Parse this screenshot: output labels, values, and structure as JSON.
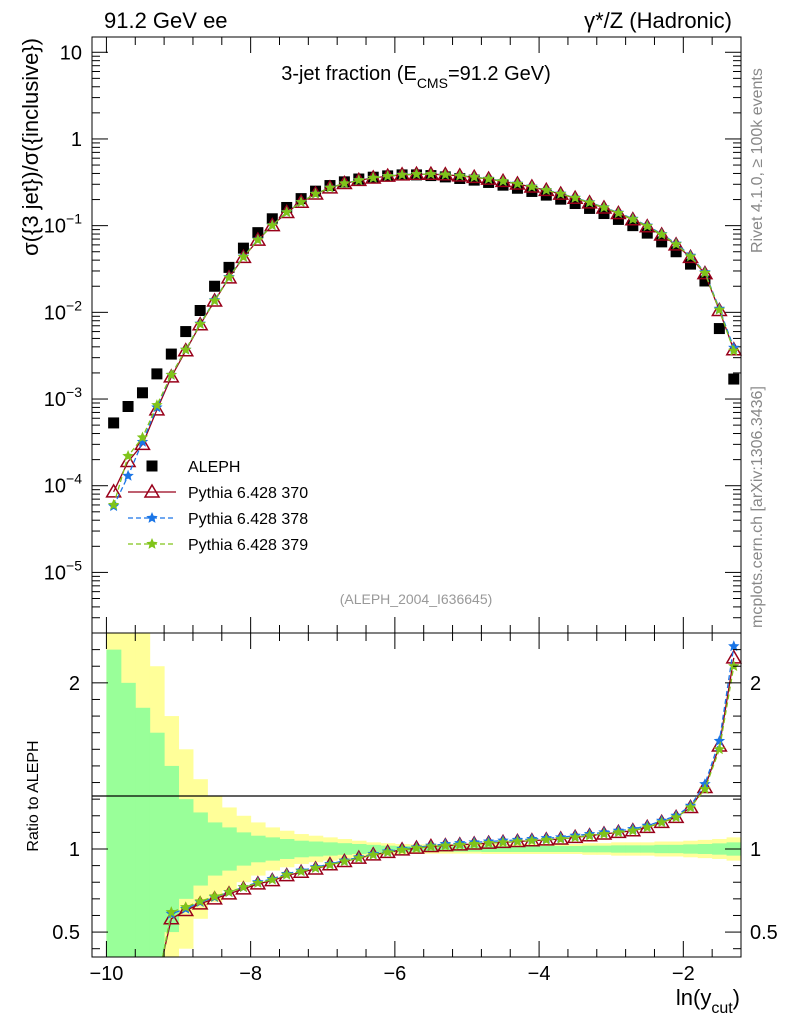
{
  "header": {
    "left": "91.2 GeV ee",
    "right": "γ*/Z (Hadronic)"
  },
  "side_text": {
    "rivet": "Rivet 4.1.0, ≥ 100k events",
    "mcplots": "mcplots.cern.ch [arXiv:1306.3436]"
  },
  "colors": {
    "aleph": "#000000",
    "p370": "#99001a",
    "p378": "#1a75e6",
    "p379": "#80c41a",
    "band_green": "#99ff99",
    "band_yellow": "#ffff99"
  },
  "chart_data": [
    {
      "type": "scatter",
      "title": "3-jet fraction (E_CMS=91.2 GeV)",
      "title_parts": {
        "pre": "3-jet fraction (E",
        "sub": "CMS",
        "post": "=91.2 GeV)"
      },
      "ylabel": "σ({3 jet})/σ({inclusive})",
      "yscale": "log",
      "ylim": [
        2e-06,
        15
      ],
      "xlim": [
        -10.2,
        -1.2
      ],
      "watermark": "(ALEPH_2004_I636645)",
      "y_ticks": [
        {
          "v": 10,
          "mant": "10",
          "exp": ""
        },
        {
          "v": 1,
          "mant": "1",
          "exp": ""
        },
        {
          "v": 0.1,
          "mant": "10",
          "exp": "−1"
        },
        {
          "v": 0.01,
          "mant": "10",
          "exp": "−2"
        },
        {
          "v": 0.001,
          "mant": "10",
          "exp": "−3"
        },
        {
          "v": 0.0001,
          "mant": "10",
          "exp": "−4"
        },
        {
          "v": 1e-05,
          "mant": "10",
          "exp": "−5"
        }
      ],
      "legend": [
        {
          "key": "aleph",
          "label": "ALEPH",
          "marker": "square"
        },
        {
          "key": "p370",
          "label": "Pythia 6.428 370",
          "marker": "triangle"
        },
        {
          "key": "p378",
          "label": "Pythia 6.428 378",
          "marker": "star"
        },
        {
          "key": "p379",
          "label": "Pythia 6.428 379",
          "marker": "star"
        }
      ],
      "x": [
        -9.9,
        -9.7,
        -9.5,
        -9.3,
        -9.1,
        -8.9,
        -8.7,
        -8.5,
        -8.3,
        -8.1,
        -7.9,
        -7.7,
        -7.5,
        -7.3,
        -7.1,
        -6.9,
        -6.7,
        -6.5,
        -6.3,
        -6.1,
        -5.9,
        -5.7,
        -5.5,
        -5.3,
        -5.1,
        -4.9,
        -4.7,
        -4.5,
        -4.3,
        -4.1,
        -3.9,
        -3.7,
        -3.5,
        -3.3,
        -3.1,
        -2.9,
        -2.7,
        -2.5,
        -2.3,
        -2.1,
        -1.9,
        -1.7,
        -1.5,
        -1.3
      ],
      "series": [
        {
          "key": "aleph",
          "name": "ALEPH",
          "values": [
            0.00053,
            0.00082,
            0.00118,
            0.00195,
            0.0033,
            0.006,
            0.0105,
            0.02,
            0.033,
            0.055,
            0.083,
            0.12,
            0.162,
            0.205,
            0.25,
            0.29,
            0.32,
            0.345,
            0.362,
            0.375,
            0.385,
            0.385,
            0.378,
            0.365,
            0.35,
            0.335,
            0.315,
            0.293,
            0.27,
            0.248,
            0.225,
            0.202,
            0.18,
            0.158,
            0.138,
            0.118,
            0.1,
            0.082,
            0.065,
            0.05,
            0.036,
            0.023,
            0.0065,
            0.0017
          ]
        },
        {
          "key": "p370",
          "name": "Pythia 6.428 370",
          "values": [
            8.5e-05,
            0.00019,
            0.0003,
            0.00075,
            0.0018,
            0.0036,
            0.0072,
            0.0135,
            0.025,
            0.043,
            0.068,
            0.1,
            0.142,
            0.186,
            0.232,
            0.273,
            0.306,
            0.333,
            0.355,
            0.372,
            0.385,
            0.392,
            0.392,
            0.386,
            0.375,
            0.361,
            0.344,
            0.324,
            0.302,
            0.279,
            0.255,
            0.231,
            0.207,
            0.183,
            0.16,
            0.138,
            0.117,
            0.097,
            0.078,
            0.06,
            0.043,
            0.028,
            0.0105,
            0.0037
          ]
        },
        {
          "key": "p378",
          "name": "Pythia 6.428 378",
          "values": [
            5.8e-05,
            0.00013,
            0.00032,
            0.0008,
            0.0019,
            0.0037,
            0.0074,
            0.0138,
            0.0255,
            0.044,
            0.069,
            0.101,
            0.143,
            0.187,
            0.233,
            0.274,
            0.307,
            0.334,
            0.356,
            0.373,
            0.386,
            0.393,
            0.393,
            0.388,
            0.377,
            0.364,
            0.347,
            0.327,
            0.305,
            0.282,
            0.258,
            0.234,
            0.21,
            0.186,
            0.163,
            0.141,
            0.12,
            0.1,
            0.08,
            0.062,
            0.045,
            0.029,
            0.011,
            0.0039
          ]
        },
        {
          "key": "p379",
          "name": "Pythia 6.428 379",
          "values": [
            6e-05,
            0.00022,
            0.00036,
            0.00085,
            0.0019,
            0.0037,
            0.0073,
            0.0136,
            0.0252,
            0.0435,
            0.0685,
            0.1005,
            0.1425,
            0.1865,
            0.2325,
            0.2735,
            0.3065,
            0.3335,
            0.3555,
            0.3725,
            0.3855,
            0.3925,
            0.3925,
            0.387,
            0.376,
            0.3625,
            0.3455,
            0.3255,
            0.3035,
            0.2805,
            0.2565,
            0.2325,
            0.2085,
            0.1845,
            0.1615,
            0.1395,
            0.1185,
            0.0985,
            0.079,
            0.061,
            0.044,
            0.0285,
            0.0107,
            0.0036
          ]
        }
      ]
    },
    {
      "type": "line",
      "ylabel": "Ratio to ALEPH",
      "xlabel": "ln(y_cut)",
      "xlabel_parts": {
        "pre": "ln(y",
        "sub": "cut",
        "post": ")"
      },
      "ylim": [
        0.35,
        2.3
      ],
      "xlim": [
        -10.2,
        -1.2
      ],
      "y_ticks": [
        0.5,
        1,
        2
      ],
      "x_ticks": [
        -10,
        -8,
        -6,
        -4,
        -2
      ],
      "x_tick_labels": [
        "−10",
        "−8",
        "−6",
        "−4",
        "−2"
      ],
      "ratio_x": [
        -9.1,
        -8.9,
        -8.7,
        -8.5,
        -8.3,
        -8.1,
        -7.9,
        -7.7,
        -7.5,
        -7.3,
        -7.1,
        -6.9,
        -6.7,
        -6.5,
        -6.3,
        -6.1,
        -5.9,
        -5.7,
        -5.5,
        -5.3,
        -5.1,
        -4.9,
        -4.7,
        -4.5,
        -4.3,
        -4.1,
        -3.9,
        -3.7,
        -3.5,
        -3.3,
        -3.1,
        -2.9,
        -2.7,
        -2.5,
        -2.3,
        -2.1,
        -1.9,
        -1.7,
        -1.5,
        -1.3
      ],
      "series": [
        {
          "key": "p370",
          "name": "Pythia 6.428 370",
          "values": [
            0.58,
            0.63,
            0.67,
            0.7,
            0.73,
            0.76,
            0.79,
            0.81,
            0.84,
            0.86,
            0.88,
            0.905,
            0.925,
            0.945,
            0.965,
            0.98,
            0.995,
            1.005,
            1.015,
            1.02,
            1.025,
            1.03,
            1.035,
            1.04,
            1.045,
            1.05,
            1.055,
            1.06,
            1.07,
            1.08,
            1.09,
            1.1,
            1.11,
            1.13,
            1.16,
            1.19,
            1.25,
            1.37,
            1.62,
            2.15
          ]
        },
        {
          "key": "p378",
          "name": "Pythia 6.428 378",
          "values": [
            0.61,
            0.64,
            0.68,
            0.71,
            0.74,
            0.77,
            0.8,
            0.82,
            0.85,
            0.87,
            0.89,
            0.91,
            0.93,
            0.95,
            0.97,
            0.985,
            1.0,
            1.01,
            1.02,
            1.03,
            1.035,
            1.04,
            1.045,
            1.05,
            1.055,
            1.06,
            1.065,
            1.07,
            1.08,
            1.09,
            1.1,
            1.11,
            1.12,
            1.14,
            1.17,
            1.2,
            1.26,
            1.39,
            1.65,
            2.22
          ]
        },
        {
          "key": "p379",
          "name": "Pythia 6.428 379",
          "values": [
            0.62,
            0.65,
            0.685,
            0.715,
            0.74,
            0.77,
            0.795,
            0.815,
            0.845,
            0.865,
            0.885,
            0.905,
            0.925,
            0.945,
            0.965,
            0.98,
            0.995,
            1.005,
            1.015,
            1.02,
            1.025,
            1.03,
            1.035,
            1.04,
            1.045,
            1.05,
            1.055,
            1.06,
            1.07,
            1.08,
            1.09,
            1.1,
            1.11,
            1.13,
            1.16,
            1.19,
            1.25,
            1.36,
            1.6,
            2.1
          ]
        }
      ],
      "band_x_edges": [
        -10.0,
        -9.8,
        -9.6,
        -9.4,
        -9.2,
        -9.0,
        -8.8,
        -8.6,
        -8.4,
        -8.2,
        -8.0,
        -7.8,
        -7.6,
        -7.4,
        -7.2,
        -7.0,
        -6.8,
        -6.6,
        -6.4,
        -6.2,
        -6.0,
        -5.8,
        -5.6,
        -5.4,
        -5.2,
        -5.0,
        -4.8,
        -4.6,
        -4.4,
        -4.2,
        -4.0,
        -3.8,
        -3.6,
        -3.4,
        -3.2,
        -3.0,
        -2.8,
        -2.6,
        -2.4,
        -2.2,
        -2.0,
        -1.8,
        -1.6,
        -1.4,
        -1.2
      ],
      "band_yellow_halfwidth": [
        2.0,
        2.0,
        1.6,
        1.1,
        0.8,
        0.6,
        0.42,
        0.32,
        0.25,
        0.2,
        0.16,
        0.13,
        0.11,
        0.09,
        0.08,
        0.07,
        0.06,
        0.05,
        0.04,
        0.035,
        0.03,
        0.028,
        0.028,
        0.028,
        0.028,
        0.028,
        0.03,
        0.03,
        0.03,
        0.03,
        0.03,
        0.03,
        0.03,
        0.035,
        0.035,
        0.04,
        0.04,
        0.04,
        0.045,
        0.045,
        0.05,
        0.055,
        0.06,
        0.07
      ],
      "band_green_halfwidth": [
        1.2,
        1.0,
        0.85,
        0.7,
        0.5,
        0.3,
        0.22,
        0.16,
        0.13,
        0.1,
        0.08,
        0.07,
        0.06,
        0.05,
        0.045,
        0.04,
        0.035,
        0.03,
        0.025,
        0.02,
        0.018,
        0.016,
        0.016,
        0.016,
        0.016,
        0.016,
        0.018,
        0.018,
        0.018,
        0.018,
        0.018,
        0.018,
        0.018,
        0.02,
        0.02,
        0.022,
        0.022,
        0.022,
        0.025,
        0.025,
        0.028,
        0.03,
        0.034,
        0.04
      ]
    }
  ]
}
